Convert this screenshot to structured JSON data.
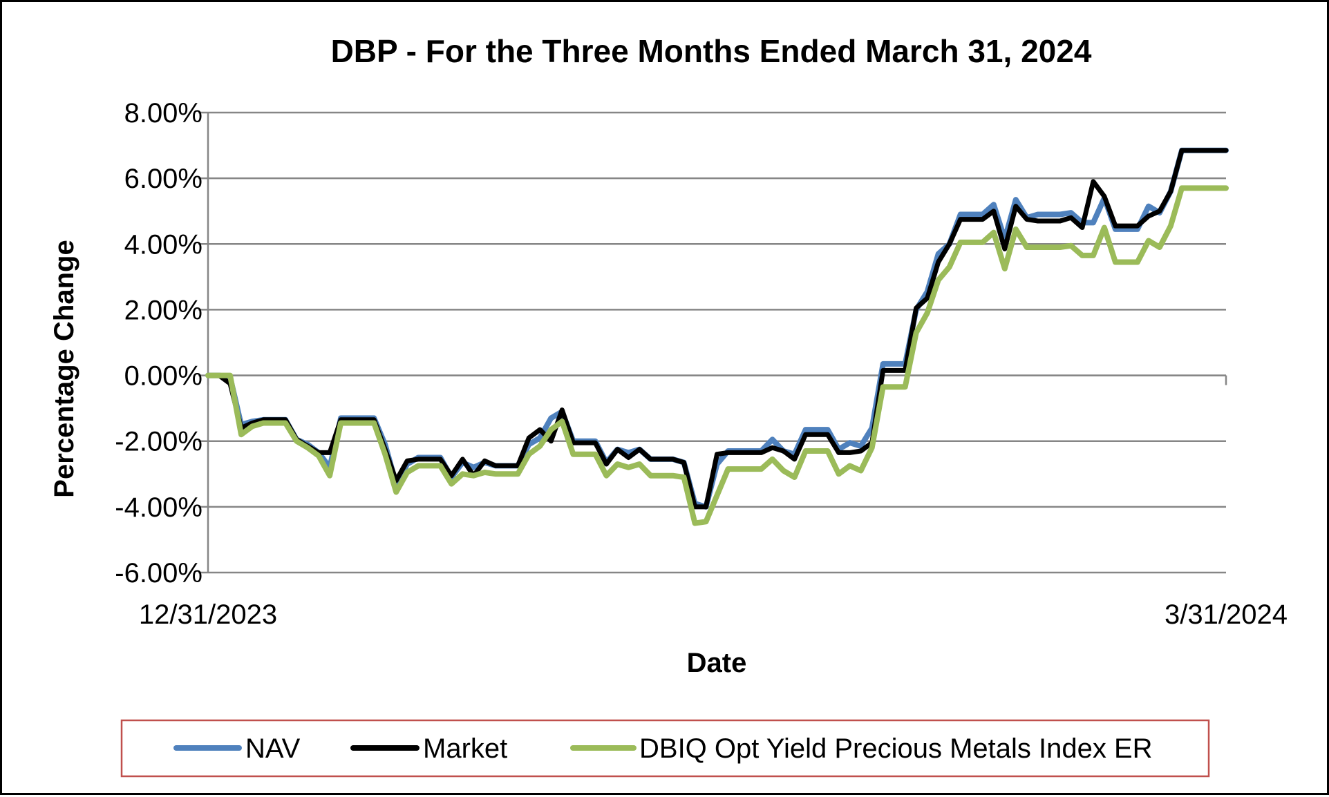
{
  "chart_data": {
    "type": "line",
    "title": "DBP - For the Three Months Ended March 31, 2024",
    "xlabel": "Date",
    "ylabel": "Percentage Change",
    "x_tick_labels": [
      "12/31/2023",
      "3/31/2024"
    ],
    "y_tick_labels": [
      "8.00%",
      "6.00%",
      "4.00%",
      "2.00%",
      "0.00%",
      "-2.00%",
      "-4.00%",
      "-6.00%"
    ],
    "y_ticks": [
      8,
      6,
      4,
      2,
      0,
      -2,
      -4,
      -6
    ],
    "ylim": [
      -6,
      8
    ],
    "grid": true,
    "legend_position": "bottom",
    "series": [
      {
        "name": "NAV",
        "color": "#4f81bd",
        "values": [
          0,
          0,
          -0.05,
          -1.5,
          -1.4,
          -1.35,
          -1.35,
          -1.35,
          -1.95,
          -2.1,
          -2.35,
          -2.8,
          -1.3,
          -1.3,
          -1.3,
          -1.3,
          -2.1,
          -3.3,
          -2.7,
          -2.5,
          -2.5,
          -2.5,
          -3.1,
          -2.65,
          -2.8,
          -2.65,
          -2.75,
          -2.75,
          -2.75,
          -2.1,
          -1.9,
          -1.3,
          -1.1,
          -2.0,
          -2.0,
          -2.0,
          -2.65,
          -2.25,
          -2.35,
          -2.25,
          -2.55,
          -2.55,
          -2.55,
          -2.65,
          -3.9,
          -4.0,
          -2.7,
          -2.3,
          -2.3,
          -2.3,
          -2.3,
          -1.95,
          -2.3,
          -2.4,
          -1.65,
          -1.65,
          -1.65,
          -2.25,
          -2.05,
          -2.15,
          -1.6,
          0.35,
          0.35,
          0.35,
          2.0,
          2.55,
          3.7,
          4.0,
          4.9,
          4.9,
          4.9,
          5.2,
          4.15,
          5.35,
          4.8,
          4.9,
          4.9,
          4.9,
          4.95,
          4.65,
          4.65,
          5.4,
          4.45,
          4.45,
          4.45,
          5.15,
          4.95,
          5.6,
          6.85,
          6.85,
          6.85,
          6.85,
          6.85
        ]
      },
      {
        "name": "Market",
        "color": "#000000",
        "values": [
          0,
          0,
          -0.25,
          -1.6,
          -1.45,
          -1.35,
          -1.35,
          -1.35,
          -1.95,
          -2.15,
          -2.35,
          -2.35,
          -1.35,
          -1.35,
          -1.35,
          -1.35,
          -2.25,
          -3.2,
          -2.6,
          -2.55,
          -2.55,
          -2.55,
          -3.05,
          -2.55,
          -3.05,
          -2.6,
          -2.75,
          -2.75,
          -2.75,
          -1.9,
          -1.65,
          -2.0,
          -1.05,
          -2.05,
          -2.05,
          -2.05,
          -2.7,
          -2.25,
          -2.5,
          -2.25,
          -2.55,
          -2.55,
          -2.55,
          -2.65,
          -4.0,
          -4.0,
          -2.4,
          -2.35,
          -2.35,
          -2.35,
          -2.35,
          -2.2,
          -2.3,
          -2.55,
          -1.8,
          -1.8,
          -1.8,
          -2.35,
          -2.35,
          -2.3,
          -2.05,
          0.15,
          0.15,
          0.15,
          2.05,
          2.35,
          3.45,
          4.0,
          4.75,
          4.75,
          4.75,
          5.0,
          3.85,
          5.15,
          4.75,
          4.7,
          4.7,
          4.7,
          4.8,
          4.5,
          5.9,
          5.45,
          4.55,
          4.55,
          4.55,
          4.85,
          5.0,
          5.6,
          6.85,
          6.85,
          6.85,
          6.85,
          6.85
        ]
      },
      {
        "name": "DBIQ Opt Yield Precious Metals Index ER",
        "color": "#9bbb59",
        "values": [
          0,
          0,
          0,
          -1.8,
          -1.55,
          -1.45,
          -1.45,
          -1.45,
          -2.0,
          -2.2,
          -2.45,
          -3.05,
          -1.45,
          -1.45,
          -1.45,
          -1.45,
          -2.4,
          -3.55,
          -2.95,
          -2.75,
          -2.75,
          -2.75,
          -3.3,
          -3.0,
          -3.05,
          -2.95,
          -3.0,
          -3.0,
          -3.0,
          -2.4,
          -2.15,
          -1.65,
          -1.4,
          -2.4,
          -2.4,
          -2.4,
          -3.05,
          -2.7,
          -2.8,
          -2.7,
          -3.05,
          -3.05,
          -3.05,
          -3.1,
          -4.5,
          -4.45,
          -3.65,
          -2.85,
          -2.85,
          -2.85,
          -2.85,
          -2.55,
          -2.9,
          -3.1,
          -2.3,
          -2.3,
          -2.3,
          -3.0,
          -2.75,
          -2.9,
          -2.2,
          -0.35,
          -0.35,
          -0.35,
          1.3,
          1.9,
          2.9,
          3.3,
          4.05,
          4.05,
          4.05,
          4.35,
          3.25,
          4.45,
          3.9,
          3.9,
          3.9,
          3.9,
          3.95,
          3.65,
          3.65,
          4.5,
          3.45,
          3.45,
          3.45,
          4.1,
          3.9,
          4.55,
          5.7,
          5.7,
          5.7,
          5.7,
          5.7
        ]
      }
    ]
  }
}
